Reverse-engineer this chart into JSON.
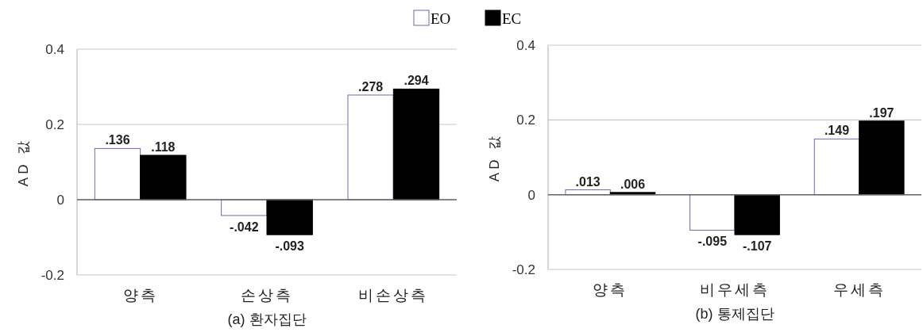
{
  "chart_data": [
    {
      "type": "bar",
      "categories": [
        "양측",
        "손상측",
        "비손상측"
      ],
      "xlabel": "(a) 환자집단",
      "ylabel": "AD 값",
      "ylim": [
        -0.2,
        0.4
      ],
      "yticks": [
        -0.2,
        0,
        0.2,
        0.4
      ],
      "grid": "y",
      "legend": "top",
      "series": [
        {
          "name": "EO",
          "color": "#ffffff",
          "values": [
            0.136,
            -0.042,
            0.278
          ],
          "value_labels": [
            ".136",
            "-.042",
            ".278"
          ]
        },
        {
          "name": "EC",
          "color": "#000000",
          "values": [
            0.118,
            -0.093,
            0.294
          ],
          "value_labels": [
            ".118",
            "-.093",
            ".294"
          ]
        }
      ]
    },
    {
      "type": "bar",
      "categories": [
        "양측",
        "비우세측",
        "우세측"
      ],
      "xlabel": "(b) 통제집단",
      "ylabel": "AD 값",
      "ylim": [
        -0.2,
        0.4
      ],
      "yticks": [
        -0.2,
        0,
        0.2,
        0.4
      ],
      "grid": "y",
      "series": [
        {
          "color": "#ffffff",
          "values": [
            0.013,
            -0.095,
            0.149
          ],
          "value_labels": [
            ".013",
            "-.095",
            ".149"
          ]
        },
        {
          "color": "#000000",
          "values": [
            0.006,
            -0.107,
            0.197
          ],
          "value_labels": [
            ".006",
            "-.107",
            ".197"
          ]
        }
      ]
    }
  ]
}
